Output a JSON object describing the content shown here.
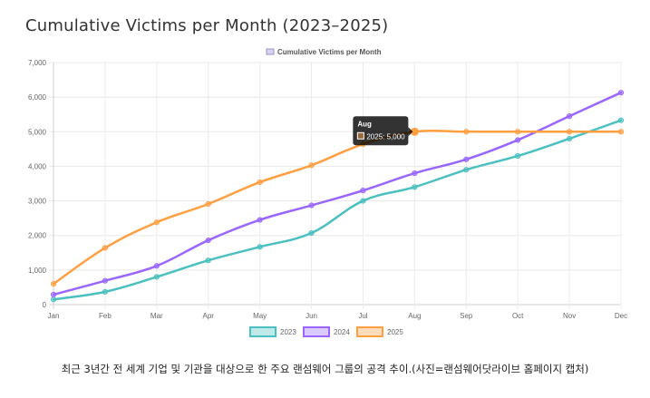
{
  "page_title": "Cumulative Victims per Month (2023–2025)",
  "caption": "최근 3년간 전 세계 기업 및 기관을 대상으로 한 주요 랜섬웨어 그룹의 공격 추이.(사진=랜섬웨어닷라이브 홈페이지 캡처)",
  "chart_data": {
    "type": "line",
    "title": "Cumulative Victims per Month",
    "categories": [
      "Jan",
      "Feb",
      "Mar",
      "Apr",
      "May",
      "Jun",
      "Jul",
      "Aug",
      "Sep",
      "Oct",
      "Nov",
      "Dec"
    ],
    "ylim": [
      0,
      7000
    ],
    "y_ticks": [
      "0",
      "1,000",
      "2,000",
      "3,000",
      "4,000",
      "5,000",
      "6,000",
      "7,000"
    ],
    "grid": true,
    "legend_position": "bottom",
    "series": [
      {
        "name": "2023",
        "color": "#4bc0c0",
        "values": [
          150,
          370,
          800,
          1280,
          1670,
          2070,
          3000,
          3400,
          3900,
          4300,
          4800,
          5330
        ]
      },
      {
        "name": "2024",
        "color": "#9966ff",
        "values": [
          290,
          690,
          1120,
          1860,
          2450,
          2870,
          3300,
          3800,
          4200,
          4760,
          5450,
          6130
        ]
      },
      {
        "name": "2025",
        "color": "#ff9f40",
        "values": [
          600,
          1640,
          2380,
          2910,
          3540,
          4030,
          4640,
          5000,
          5000,
          5000,
          5000,
          5000
        ]
      }
    ],
    "tooltip": {
      "title": "Aug",
      "label": "2025: 5,000",
      "series_index": 2,
      "point_index": 7,
      "color": "#ff9f40"
    }
  }
}
